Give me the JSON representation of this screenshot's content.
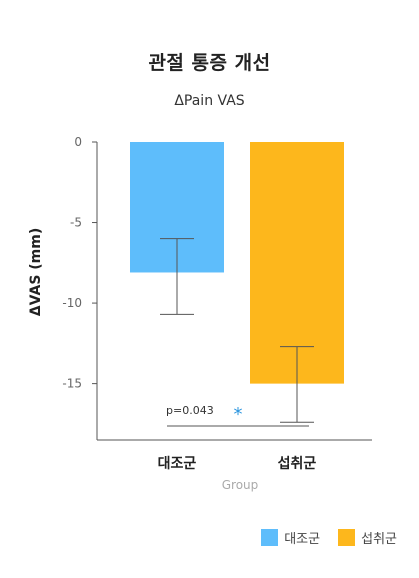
{
  "chart_data": {
    "type": "bar",
    "title": "관절 통증 개선",
    "subtitle": "ΔPain VAS",
    "xlabel": "Group",
    "ylabel": "ΔVAS (mm)",
    "categories": [
      "대조군",
      "섭취군"
    ],
    "values": [
      -8.1,
      -15.0
    ],
    "error_low": [
      -10.7,
      -17.4
    ],
    "error_high": [
      -6.0,
      -12.7
    ],
    "colors": [
      "#5ebdfb",
      "#fdb71c"
    ],
    "ylim": [
      -18.5,
      0
    ],
    "yticks": [
      0,
      -5,
      -10,
      -15
    ],
    "annotation": {
      "text": "p=0.043",
      "marker": "*",
      "marker_color": "#2a94de"
    },
    "legend": {
      "position": "bottom-right",
      "entries": [
        "대조군",
        "섭취군"
      ]
    },
    "grid": false
  }
}
